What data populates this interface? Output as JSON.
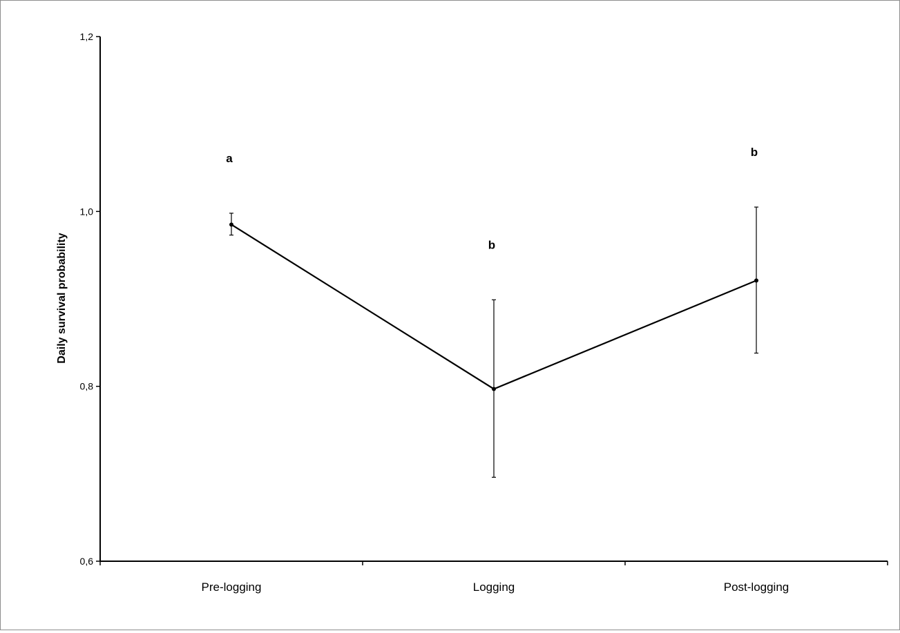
{
  "chart_data": {
    "type": "line",
    "title": "",
    "xlabel": "",
    "ylabel": "Daily survival probability",
    "categories": [
      "Pre-logging",
      "Logging",
      "Post-logging"
    ],
    "series": [
      {
        "values": [
          0.985,
          0.797,
          0.921
        ],
        "error_low": [
          0.973,
          0.696,
          0.838
        ],
        "error_high": [
          0.998,
          0.899,
          1.005
        ]
      }
    ],
    "annotations": [
      "a",
      "b",
      "b"
    ],
    "ylim": [
      0.6,
      1.2
    ],
    "yticks": [
      0.6,
      0.8,
      1.0,
      1.2
    ],
    "ytick_labels": [
      "0,6",
      "0,8",
      "1,0",
      "1,2"
    ],
    "grid": false,
    "legend": "none",
    "line_color": "#000000"
  }
}
